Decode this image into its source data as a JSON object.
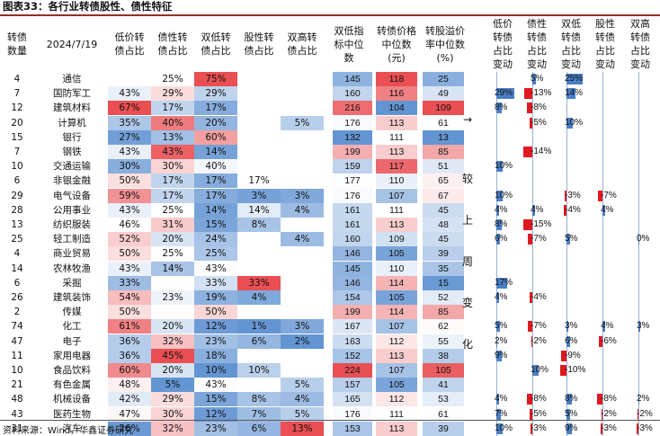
{
  "title": "图表33：各行业转债股性、债性特征",
  "source": "资料来源：Wind，华鑫证券研究",
  "headers": {
    "count": "转债\n数量",
    "date": "2024/7/19",
    "low_price": "低价转\n债占比",
    "bond": "债性转\n债占比",
    "double_low": "双低转\n债占比",
    "equity": "股性转\n债占比",
    "double_high": "双高转\n债占比",
    "dl_median": "双低指\n标中位\n数",
    "price_median": "转债价格\n中位数\n(元)",
    "premium_median": "转股溢价\n率中位数\n(%)",
    "chg_low": "低价\n转债\n占比\n变动",
    "chg_bond": "债性\n转债\n占比\n变动",
    "chg_dl": "双低\n转债\n占比\n变动",
    "chg_eq": "股性\n转债\n占比\n变动",
    "chg_dh": "双高\n转债\n占比\n变动"
  },
  "arrow_label": "→",
  "side_text": [
    "较",
    "上",
    "周",
    "变",
    "化"
  ],
  "colors": {
    "red_strong": "#e8464a",
    "blue_strong": "#5b8fd0",
    "bar_red": "#e0191f",
    "bar_blue": "#4a7fc6",
    "title_rule": "#9b2b2b"
  },
  "chart_data": {
    "type": "table",
    "columns": [
      "转债数量",
      "行业",
      "低价转债占比",
      "债性转债占比",
      "双低转债占比",
      "股性转债占比",
      "双高转债占比",
      "双低指标中位数",
      "转债价格中位数(元)",
      "转股溢价率中位数(%)",
      "低价转债占比变动",
      "债性转债占比变动",
      "双低转债占比变动",
      "股性转债占比变动",
      "双高转债占比变动"
    ],
    "rows": [
      {
        "count": "4",
        "name": "通信",
        "low": "",
        "bond": "25%",
        "dl": "75%",
        "eq": "",
        "dh": "",
        "dlm": "145",
        "pm": "118",
        "prm": "25",
        "c1": null,
        "c2": 5,
        "c3": 25,
        "c4": null,
        "c5": null,
        "c1t": "",
        "c2t": "5%",
        "c3t": "25%",
        "c4t": "",
        "c5t": ""
      },
      {
        "count": "7",
        "name": "国防军工",
        "low": "43%",
        "bond": "29%",
        "dl": "29%",
        "eq": "",
        "dh": "",
        "dlm": "160",
        "pm": "116",
        "prm": "49",
        "c1": 29,
        "c2": -13,
        "c3": 14,
        "c4": null,
        "c5": null,
        "c1t": "29%",
        "c2t": "-13%",
        "c3t": "14%",
        "c4t": "",
        "c5t": ""
      },
      {
        "count": "12",
        "name": "建筑材料",
        "low": "67%",
        "bond": "17%",
        "dl": "17%",
        "eq": "",
        "dh": "",
        "dlm": "216",
        "pm": "104",
        "prm": "109",
        "c1": 8,
        "c2": -8,
        "c3": null,
        "c4": null,
        "c5": null,
        "c1t": "8%",
        "c2t": "-8%",
        "c3t": "",
        "c4t": "",
        "c5t": ""
      },
      {
        "count": "20",
        "name": "计算机",
        "low": "35%",
        "bond": "40%",
        "dl": "20%",
        "eq": "",
        "dh": "5%",
        "dlm": "176",
        "pm": "113",
        "prm": "61",
        "c1": null,
        "c2": -5,
        "c3": 10,
        "c4": null,
        "c5": null,
        "c1t": "",
        "c2t": "-5%",
        "c3t": "10%",
        "c4t": "",
        "c5t": ""
      },
      {
        "count": "15",
        "name": "银行",
        "low": "27%",
        "bond": "13%",
        "dl": "60%",
        "eq": "",
        "dh": "",
        "dlm": "132",
        "pm": "111",
        "prm": "13",
        "c1": null,
        "c2": null,
        "c3": null,
        "c4": null,
        "c5": null,
        "c1t": "",
        "c2t": "",
        "c3t": "",
        "c4t": "",
        "c5t": ""
      },
      {
        "count": "7",
        "name": "钢铁",
        "low": "43%",
        "bond": "43%",
        "dl": "14%",
        "eq": "",
        "dh": "",
        "dlm": "199",
        "pm": "113",
        "prm": "85",
        "c1": null,
        "c2": -14,
        "c3": null,
        "c4": null,
        "c5": null,
        "c1t": "",
        "c2t": "-14%",
        "c3t": "",
        "c4t": "",
        "c5t": ""
      },
      {
        "count": "10",
        "name": "交通运输",
        "low": "30%",
        "bond": "30%",
        "dl": "40%",
        "eq": "",
        "dh": "",
        "dlm": "159",
        "pm": "117",
        "prm": "51",
        "c1": 10,
        "c2": null,
        "c3": null,
        "c4": null,
        "c5": null,
        "c1t": "10%",
        "c2t": "",
        "c3t": "",
        "c4t": "",
        "c5t": ""
      },
      {
        "count": "6",
        "name": "非银金融",
        "low": "50%",
        "bond": "17%",
        "dl": "17%",
        "eq": "17%",
        "dh": "",
        "dlm": "177",
        "pm": "110",
        "prm": "65",
        "c1": null,
        "c2": null,
        "c3": null,
        "c4": null,
        "c5": null,
        "c1t": "",
        "c2t": "",
        "c3t": "",
        "c4t": "",
        "c5t": ""
      },
      {
        "count": "29",
        "name": "电气设备",
        "low": "59%",
        "bond": "17%",
        "dl": "17%",
        "eq": "3%",
        "dh": "3%",
        "dlm": "176",
        "pm": "107",
        "prm": "67",
        "c1": 10,
        "c2": null,
        "c3": -3,
        "c4": -7,
        "c5": null,
        "c1t": "10%",
        "c2t": "",
        "c3t": "-3%",
        "c4t": "-7%",
        "c5t": ""
      },
      {
        "count": "28",
        "name": "公用事业",
        "low": "43%",
        "bond": "25%",
        "dl": "14%",
        "eq": "14%",
        "dh": "4%",
        "dlm": "161",
        "pm": "111",
        "prm": "45",
        "c1": 4,
        "c2": 4,
        "c3": -4,
        "c4": 4,
        "c5": null,
        "c1t": "4%",
        "c2t": "4%",
        "c3t": "-4%",
        "c4t": "4%",
        "c5t": ""
      },
      {
        "count": "13",
        "name": "纺织服装",
        "low": "46%",
        "bond": "31%",
        "dl": "15%",
        "eq": "8%",
        "dh": "",
        "dlm": "161",
        "pm": "113",
        "prm": "48",
        "c1": 8,
        "c2": -15,
        "c3": null,
        "c4": null,
        "c5": null,
        "c1t": "8%",
        "c2t": "-15%",
        "c3t": "",
        "c4t": "",
        "c5t": ""
      },
      {
        "count": "25",
        "name": "轻工制造",
        "low": "52%",
        "bond": "20%",
        "dl": "24%",
        "eq": "",
        "dh": "4%",
        "dlm": "160",
        "pm": "109",
        "prm": "45",
        "c1": 6,
        "c2": -7,
        "c3": 5,
        "c4": null,
        "c5": 0,
        "c1t": "6%",
        "c2t": "-7%",
        "c3t": "5%",
        "c4t": "",
        "c5t": "0%"
      },
      {
        "count": "4",
        "name": "商业贸易",
        "low": "50%",
        "bond": "25%",
        "dl": "25%",
        "eq": "",
        "dh": "",
        "dlm": "146",
        "pm": "105",
        "prm": "39",
        "c1": null,
        "c2": null,
        "c3": null,
        "c4": null,
        "c5": null,
        "c1t": "",
        "c2t": "",
        "c3t": "",
        "c4t": "",
        "c5t": ""
      },
      {
        "count": "14",
        "name": "农林牧渔",
        "low": "43%",
        "bond": "14%",
        "dl": "43%",
        "eq": "",
        "dh": "",
        "dlm": "145",
        "pm": "110",
        "prm": "35",
        "c1": null,
        "c2": null,
        "c3": null,
        "c4": null,
        "c5": null,
        "c1t": "",
        "c2t": "",
        "c3t": "",
        "c4t": "",
        "c5t": ""
      },
      {
        "count": "6",
        "name": "采掘",
        "low": "33%",
        "bond": "",
        "dl": "33%",
        "eq": "33%",
        "dh": "",
        "dlm": "146",
        "pm": "114",
        "prm": "15",
        "c1": 17,
        "c2": null,
        "c3": null,
        "c4": null,
        "c5": null,
        "c1t": "17%",
        "c2t": "",
        "c3t": "",
        "c4t": "",
        "c5t": ""
      },
      {
        "count": "26",
        "name": "建筑装饰",
        "low": "54%",
        "bond": "23%",
        "dl": "19%",
        "eq": "4%",
        "dh": "",
        "dlm": "154",
        "pm": "105",
        "prm": "52",
        "c1": 4,
        "c2": -4,
        "c3": null,
        "c4": null,
        "c5": null,
        "c1t": "4%",
        "c2t": "-4%",
        "c3t": "",
        "c4t": "",
        "c5t": ""
      },
      {
        "count": "2",
        "name": "传媒",
        "low": "50%",
        "bond": "",
        "dl": "50%",
        "eq": "",
        "dh": "",
        "dlm": "199",
        "pm": "114",
        "prm": "85",
        "c1": null,
        "c2": null,
        "c3": null,
        "c4": null,
        "c5": null,
        "c1t": "",
        "c2t": "",
        "c3t": "",
        "c4t": "",
        "c5t": ""
      },
      {
        "count": "74",
        "name": "化工",
        "low": "61%",
        "bond": "20%",
        "dl": "12%",
        "eq": "1%",
        "dh": "3%",
        "dlm": "167",
        "pm": "107",
        "prm": "62",
        "c1": 5,
        "c2": -7,
        "c3": 3,
        "c4": 4,
        "c5": 3,
        "c1t": "5%",
        "c2t": "-7%",
        "c3t": "3%",
        "c4t": "4%",
        "c5t": "3%"
      },
      {
        "count": "47",
        "name": "电子",
        "low": "36%",
        "bond": "32%",
        "dl": "23%",
        "eq": "6%",
        "dh": "2%",
        "dlm": "163",
        "pm": "112",
        "prm": "55",
        "c1": 2,
        "c2": -2,
        "c3": 6,
        "c4": -6,
        "c5": null,
        "c1t": "2%",
        "c2t": "-2%",
        "c3t": "6%",
        "c4t": "-6%",
        "c5t": ""
      },
      {
        "count": "11",
        "name": "家用电器",
        "low": "36%",
        "bond": "45%",
        "dl": "18%",
        "eq": "",
        "dh": "",
        "dlm": "152",
        "pm": "113",
        "prm": "38",
        "c1": 9,
        "c2": null,
        "c3": -9,
        "c4": null,
        "c5": null,
        "c1t": "9%",
        "c2t": "",
        "c3t": "-9%",
        "c4t": "",
        "c5t": ""
      },
      {
        "count": "10",
        "name": "食品饮料",
        "low": "60%",
        "bond": "20%",
        "dl": "10%",
        "eq": "10%",
        "dh": "",
        "dlm": "224",
        "pm": "107",
        "prm": "105",
        "c1": null,
        "c2": 10,
        "c3": -10,
        "c4": null,
        "c5": null,
        "c1t": "",
        "c2t": "10%",
        "c3t": "-10%",
        "c4t": "",
        "c5t": ""
      },
      {
        "count": "21",
        "name": "有色金属",
        "low": "48%",
        "bond": "5%",
        "dl": "43%",
        "eq": "",
        "dh": "5%",
        "dlm": "157",
        "pm": "105",
        "prm": "41",
        "c1": null,
        "c2": null,
        "c3": null,
        "c4": null,
        "c5": null,
        "c1t": "",
        "c2t": "",
        "c3t": "",
        "c4t": "",
        "c5t": ""
      },
      {
        "count": "48",
        "name": "机械设备",
        "low": "42%",
        "bond": "29%",
        "dl": "15%",
        "eq": "8%",
        "dh": "4%",
        "dlm": "165",
        "pm": "112",
        "prm": "53",
        "c1": 4,
        "c2": -8,
        "c3": 8,
        "c4": -8,
        "c5": 2,
        "c1t": "4%",
        "c2t": "-8%",
        "c3t": "8%",
        "c4t": "-8%",
        "c5t": "2%"
      },
      {
        "count": "43",
        "name": "医药生物",
        "low": "47%",
        "bond": "30%",
        "dl": "12%",
        "eq": "7%",
        "dh": "5%",
        "dlm": "176",
        "pm": "111",
        "prm": "61",
        "c1": 7,
        "c2": -5,
        "c3": 5,
        "c4": -2,
        "c5": -2,
        "c1t": "7%",
        "c2t": "-5%",
        "c3t": "5%",
        "c4t": "-2%",
        "c5t": "-2%"
      },
      {
        "count": "31",
        "name": "汽车",
        "low": "26%",
        "bond": "32%",
        "dl": "23%",
        "eq": "6%",
        "dh": "13%",
        "dlm": "153",
        "pm": "113",
        "prm": "39",
        "c1": 10,
        "c2": -3,
        "c3": 9,
        "c4": -3,
        "c5": -3,
        "c1t": "10%",
        "c2t": "-3%",
        "c3t": "9%",
        "c4t": "-3%",
        "c5t": "-3%"
      }
    ]
  }
}
